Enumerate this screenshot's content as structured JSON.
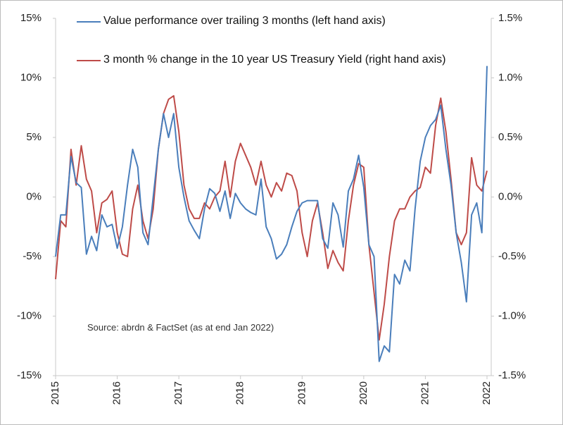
{
  "chart_data": {
    "type": "line",
    "categories": [
      "2015",
      null,
      null,
      null,
      null,
      null,
      null,
      null,
      null,
      null,
      null,
      null,
      "2016",
      null,
      null,
      null,
      null,
      null,
      null,
      null,
      null,
      null,
      null,
      null,
      "2017",
      null,
      null,
      null,
      null,
      null,
      null,
      null,
      null,
      null,
      null,
      null,
      "2018",
      null,
      null,
      null,
      null,
      null,
      null,
      null,
      null,
      null,
      null,
      null,
      "2019",
      null,
      null,
      null,
      null,
      null,
      null,
      null,
      null,
      null,
      null,
      null,
      "2020",
      null,
      null,
      null,
      null,
      null,
      null,
      null,
      null,
      null,
      null,
      null,
      "2021",
      null,
      null,
      null,
      null,
      null,
      null,
      null,
      null,
      null,
      null,
      null,
      "2022"
    ],
    "series": [
      {
        "name": "Value performance over trailing 3 months (left hand axis)",
        "color": "#4a7ebb",
        "axis": "y",
        "values": [
          -5,
          -1.5,
          -1.5,
          3.4,
          1.2,
          0.8,
          -4.8,
          -3.3,
          -4.5,
          -1.5,
          -2.5,
          -2.3,
          -4.3,
          -2.5,
          1,
          4,
          2.5,
          -3,
          -4,
          0,
          4,
          7,
          5,
          7,
          2.5,
          0,
          -2,
          -2.8,
          -3.5,
          -1,
          0.7,
          0.3,
          -1.2,
          0.5,
          -1.8,
          0.3,
          -0.5,
          -1,
          -1.3,
          -1.5,
          1.5,
          -2.5,
          -3.5,
          -5.2,
          -4.8,
          -4,
          -2.5,
          -1.2,
          -0.5,
          -0.3,
          -0.3,
          -0.3,
          -3.5,
          -4.3,
          -0.5,
          -1.5,
          -4.2,
          0.5,
          1.5,
          3.5,
          0.8,
          -4,
          -5,
          -13.8,
          -12.5,
          -13,
          -6.5,
          -7.3,
          -5.3,
          -6.2,
          -1,
          3,
          5,
          6,
          6.5,
          7.7,
          4,
          1,
          -3,
          -5.5,
          -8.8,
          -1.5,
          -0.5,
          -3,
          11
        ]
      },
      {
        "name": "3 month % change in the 10 year US Treasury Yield (right hand axis)",
        "color": "#be4b48",
        "axis": "y2",
        "values": [
          -0.69,
          -0.2,
          -0.25,
          0.4,
          0.1,
          0.43,
          0.15,
          0.05,
          -0.3,
          -0.05,
          -0.02,
          0.05,
          -0.3,
          -0.48,
          -0.5,
          -0.1,
          0.1,
          -0.2,
          -0.35,
          -0.1,
          0.4,
          0.7,
          0.82,
          0.85,
          0.55,
          0.1,
          -0.1,
          -0.18,
          -0.18,
          -0.05,
          -0.1,
          0,
          0.05,
          0.3,
          0,
          0.3,
          0.45,
          0.35,
          0.25,
          0.1,
          0.3,
          0.1,
          0,
          0.12,
          0.05,
          0.2,
          0.18,
          0.05,
          -0.3,
          -0.5,
          -0.2,
          -0.05,
          -0.3,
          -0.6,
          -0.45,
          -0.55,
          -0.62,
          -0.2,
          0.1,
          0.28,
          0.25,
          -0.4,
          -0.8,
          -1.2,
          -0.9,
          -0.5,
          -0.2,
          -0.1,
          -0.1,
          0,
          0.05,
          0.08,
          0.25,
          0.2,
          0.6,
          0.83,
          0.55,
          0.15,
          -0.3,
          -0.4,
          -0.3,
          0.33,
          0.1,
          0.05,
          0.22
        ]
      }
    ],
    "ylim": [
      -15,
      15
    ],
    "yticks": [
      {
        "value": -15,
        "label": "-15%"
      },
      {
        "value": -10,
        "label": "-10%"
      },
      {
        "value": -5,
        "label": "-5%"
      },
      {
        "value": 0,
        "label": "0%"
      },
      {
        "value": 5,
        "label": "5%"
      },
      {
        "value": 10,
        "label": "10%"
      },
      {
        "value": 15,
        "label": "15%"
      }
    ],
    "y2lim": [
      -1.5,
      1.5
    ],
    "y2ticks": [
      {
        "value": -1.5,
        "label": "-1.5%"
      },
      {
        "value": -1,
        "label": "-1.0%"
      },
      {
        "value": -0.5,
        "label": "-0.5%"
      },
      {
        "value": 0,
        "label": "0.0%"
      },
      {
        "value": 0.5,
        "label": "0.5%"
      },
      {
        "value": 1,
        "label": "1.0%"
      },
      {
        "value": 1.5,
        "label": "1.5%"
      }
    ],
    "annotation": "Source: abrdn & FactSet (as at end Jan 2022)",
    "grid": false
  }
}
